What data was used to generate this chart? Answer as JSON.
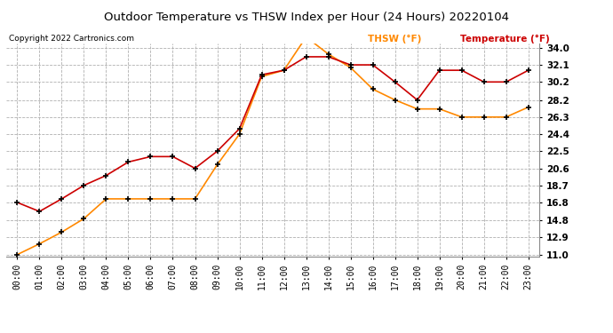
{
  "title": "Outdoor Temperature vs THSW Index per Hour (24 Hours) 20220104",
  "copyright": "Copyright 2022 Cartronics.com",
  "legend_thsw": "THSW (°F)",
  "legend_temp": "Temperature (°F)",
  "hours": [
    "00:00",
    "01:00",
    "02:00",
    "03:00",
    "04:00",
    "05:00",
    "06:00",
    "07:00",
    "08:00",
    "09:00",
    "10:00",
    "11:00",
    "12:00",
    "13:00",
    "14:00",
    "15:00",
    "16:00",
    "17:00",
    "18:00",
    "19:00",
    "20:00",
    "21:00",
    "22:00",
    "23:00"
  ],
  "temperature": [
    16.8,
    15.8,
    17.2,
    18.7,
    19.8,
    21.3,
    21.9,
    21.9,
    20.6,
    22.5,
    25.0,
    31.0,
    31.5,
    33.0,
    33.0,
    32.1,
    32.1,
    30.2,
    28.2,
    31.5,
    31.5,
    30.2,
    30.2,
    31.5
  ],
  "thsw": [
    11.0,
    12.2,
    13.5,
    15.0,
    17.2,
    17.2,
    17.2,
    17.2,
    17.2,
    21.0,
    24.4,
    30.8,
    31.5,
    35.2,
    33.3,
    31.8,
    29.4,
    28.2,
    27.2,
    27.2,
    26.3,
    26.3,
    26.3,
    27.4
  ],
  "ylim_min": 11.0,
  "ylim_max": 34.0,
  "yticks": [
    11.0,
    12.9,
    14.8,
    16.8,
    18.7,
    20.6,
    22.5,
    24.4,
    26.3,
    28.2,
    30.2,
    32.1,
    34.0
  ],
  "temp_color": "#cc0000",
  "thsw_color": "#ff8800",
  "marker_color": "#000000",
  "bg_color": "#ffffff",
  "grid_color": "#b0b0b0",
  "title_color": "#000000",
  "copyright_color": "#000000",
  "legend_thsw_color": "#ff8800",
  "legend_temp_color": "#cc0000"
}
